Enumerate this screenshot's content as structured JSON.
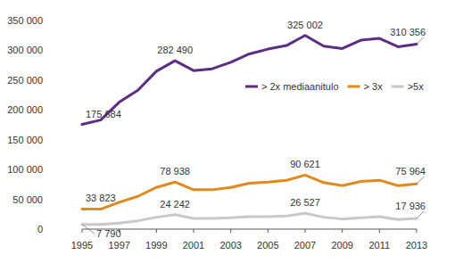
{
  "chart_data": {
    "type": "line",
    "x": [
      1995,
      1996,
      1997,
      1998,
      1999,
      2000,
      2001,
      2002,
      2003,
      2004,
      2005,
      2006,
      2007,
      2008,
      2009,
      2010,
      2011,
      2012,
      2013
    ],
    "xlim": [
      1995,
      2013
    ],
    "xticks": [
      1995,
      1997,
      1999,
      2001,
      2003,
      2005,
      2007,
      2009,
      2011,
      2013
    ],
    "ylim": [
      0,
      350000
    ],
    "yticks": [
      0,
      {
        "value": 50000,
        "label": "50 000"
      },
      {
        "value": 100000,
        "label": "100 000"
      },
      {
        "value": 150000,
        "label": "150 000"
      },
      {
        "value": 200000,
        "label": "200 000"
      },
      {
        "value": 250000,
        "label": "250 000"
      },
      {
        "value": 300000,
        "label": "300 000"
      },
      {
        "value": 350000,
        "label": "350 000"
      }
    ],
    "grid": false,
    "legend": "right",
    "data_labels": true,
    "series": [
      {
        "name": "> 2x mediaanitulo",
        "color": "#5c2d83",
        "values": [
          175684,
          183000,
          213000,
          233000,
          265000,
          282490,
          266000,
          269000,
          280000,
          294000,
          302000,
          308000,
          325002,
          307000,
          303000,
          317000,
          320000,
          306000,
          310356
        ],
        "value_labels": [
          "175 684",
          null,
          null,
          null,
          null,
          "282 490",
          null,
          null,
          null,
          null,
          null,
          null,
          "325 002",
          null,
          null,
          null,
          null,
          null,
          "310 356"
        ]
      },
      {
        "name": "> 3x",
        "color": "#e08a1e",
        "values": [
          33823,
          33500,
          45000,
          55000,
          70000,
          78938,
          66000,
          66000,
          70000,
          77000,
          79000,
          82000,
          90621,
          78000,
          73000,
          80000,
          82000,
          73000,
          75964
        ],
        "value_labels": [
          "33 823",
          null,
          null,
          null,
          null,
          "78 938",
          null,
          null,
          null,
          null,
          null,
          null,
          "90 621",
          null,
          null,
          null,
          null,
          null,
          "75 964"
        ]
      },
      {
        "name": ">5x",
        "color": "#c8c8c8",
        "values": [
          7790,
          8000,
          10000,
          14000,
          20000,
          24242,
          18000,
          18000,
          19000,
          21000,
          21000,
          22000,
          26527,
          20000,
          17000,
          19000,
          21000,
          16000,
          17936
        ],
        "value_labels": [
          "7 790",
          null,
          null,
          null,
          null,
          "24 242",
          null,
          null,
          null,
          null,
          null,
          null,
          "26 527",
          null,
          null,
          null,
          null,
          null,
          "17 936"
        ]
      }
    ]
  }
}
